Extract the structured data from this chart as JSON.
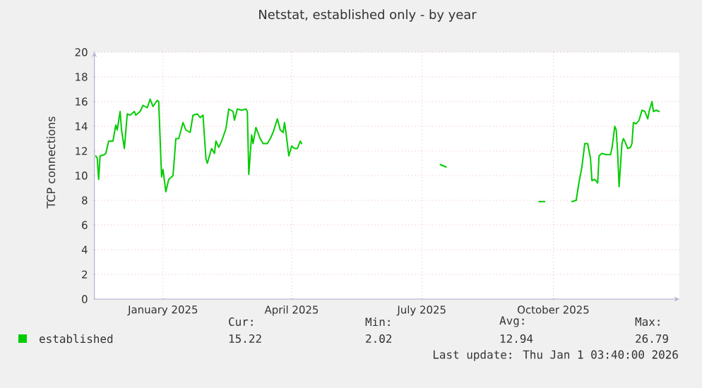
{
  "chart_data": {
    "type": "line",
    "title": "Netstat, established only - by year",
    "ylabel": "TCP connections",
    "xlim": [
      "2024-11-14",
      "2025-12-28"
    ],
    "xticks": [
      {
        "value": "2025-01-01",
        "label": "January 2025"
      },
      {
        "value": "2025-04-01",
        "label": "April 2025"
      },
      {
        "value": "2025-07-01",
        "label": "July 2025"
      },
      {
        "value": "2025-10-01",
        "label": "October 2025"
      }
    ],
    "ylim": [
      0,
      20
    ],
    "yticks": [
      0,
      2,
      4,
      6,
      8,
      10,
      12,
      14,
      16,
      18,
      20
    ],
    "grid": true,
    "legend": "bottom",
    "x": [
      "2024-11-15",
      "2024-11-16",
      "2024-11-17",
      "2024-11-18",
      "2024-11-21",
      "2024-11-22",
      "2024-11-24",
      "2024-11-27",
      "2024-11-29",
      "2024-11-30",
      "2024-12-02",
      "2024-12-03",
      "2024-12-05",
      "2024-12-07",
      "2024-12-09",
      "2024-12-12",
      "2024-12-13",
      "2024-12-16",
      "2024-12-18",
      "2024-12-21",
      "2024-12-23",
      "2024-12-25",
      "2024-12-28",
      "2024-12-29",
      "2024-12-31",
      "2025-01-01",
      "2025-01-03",
      "2025-01-05",
      "2025-01-08",
      "2025-01-10",
      "2025-01-12",
      "2025-01-15",
      "2025-01-17",
      "2025-01-20",
      "2025-01-22",
      "2025-01-25",
      "2025-01-27",
      "2025-01-29",
      "2025-01-31",
      "2025-02-01",
      "2025-02-04",
      "2025-02-06",
      "2025-02-07",
      "2025-02-09",
      "2025-02-11",
      "2025-02-14",
      "2025-02-16",
      "2025-02-19",
      "2025-02-20",
      "2025-02-22",
      "2025-02-25",
      "2025-02-28",
      "2025-03-01",
      "2025-03-02",
      "2025-03-04",
      "2025-03-05",
      "2025-03-07",
      "2025-03-10",
      "2025-03-12",
      "2025-03-15",
      "2025-03-17",
      "2025-03-19",
      "2025-03-22",
      "2025-03-24",
      "2025-03-26",
      "2025-03-27",
      "2025-03-28",
      "2025-03-30",
      "2025-04-01",
      "2025-04-03",
      "2025-04-05",
      "2025-04-07",
      "2025-04-08",
      "2025-05-15",
      "2025-07-14",
      "2025-07-18",
      "2025-08-20",
      "2025-09-21",
      "2025-09-25",
      "2025-10-05",
      "2025-10-14",
      "2025-10-17",
      "2025-10-19",
      "2025-10-21",
      "2025-10-23",
      "2025-10-25",
      "2025-10-27",
      "2025-10-28",
      "2025-10-30",
      "2025-11-01",
      "2025-11-02",
      "2025-11-04",
      "2025-11-07",
      "2025-11-10",
      "2025-11-11",
      "2025-11-13",
      "2025-11-14",
      "2025-11-15",
      "2025-11-16",
      "2025-11-18",
      "2025-11-19",
      "2025-11-20",
      "2025-11-22",
      "2025-11-24",
      "2025-11-25",
      "2025-11-26",
      "2025-11-28",
      "2025-11-30",
      "2025-12-02",
      "2025-12-04",
      "2025-12-06",
      "2025-12-07",
      "2025-12-09",
      "2025-12-10",
      "2025-12-12",
      "2025-12-14"
    ],
    "series": [
      {
        "name": "established",
        "color": "#00cc00",
        "values": [
          11.6,
          11.4,
          9.7,
          11.6,
          11.7,
          11.8,
          12.8,
          12.8,
          14.1,
          13.7,
          15.2,
          13.7,
          12.2,
          15.0,
          14.9,
          15.2,
          14.9,
          15.2,
          15.7,
          15.5,
          16.2,
          15.6,
          16.1,
          16.0,
          9.9,
          10.5,
          8.7,
          9.7,
          10.0,
          13.0,
          13.0,
          14.3,
          13.7,
          13.5,
          14.9,
          15.0,
          14.7,
          14.9,
          11.4,
          11.0,
          12.2,
          11.8,
          12.8,
          12.3,
          12.8,
          13.8,
          15.4,
          15.2,
          14.5,
          15.4,
          15.3,
          15.4,
          15.2,
          10.1,
          13.3,
          12.6,
          13.9,
          13.0,
          12.6,
          12.6,
          13.0,
          13.5,
          14.6,
          13.7,
          13.5,
          14.3,
          13.5,
          11.6,
          12.4,
          12.2,
          12.2,
          12.8,
          12.6,
          null,
          10.9,
          10.7,
          null,
          7.9,
          7.9,
          null,
          7.9,
          8.0,
          9.5,
          10.7,
          12.6,
          12.6,
          11.4,
          9.6,
          9.7,
          9.4,
          11.6,
          11.8,
          11.7,
          11.7,
          12.2,
          14.0,
          13.7,
          11.8,
          9.1,
          12.6,
          13.0,
          12.8,
          12.2,
          12.3,
          12.6,
          14.3,
          14.2,
          14.5,
          15.3,
          15.2,
          14.6,
          15.2,
          16.0,
          15.2,
          15.3,
          15.2
        ]
      }
    ],
    "annotations": [
      "Cur:",
      "Min:",
      "Avg:",
      "Max:",
      "15.22",
      "2.02",
      "12.94",
      "26.79",
      "Last update: Thu Jan  1 03:40:00 2026"
    ]
  }
}
